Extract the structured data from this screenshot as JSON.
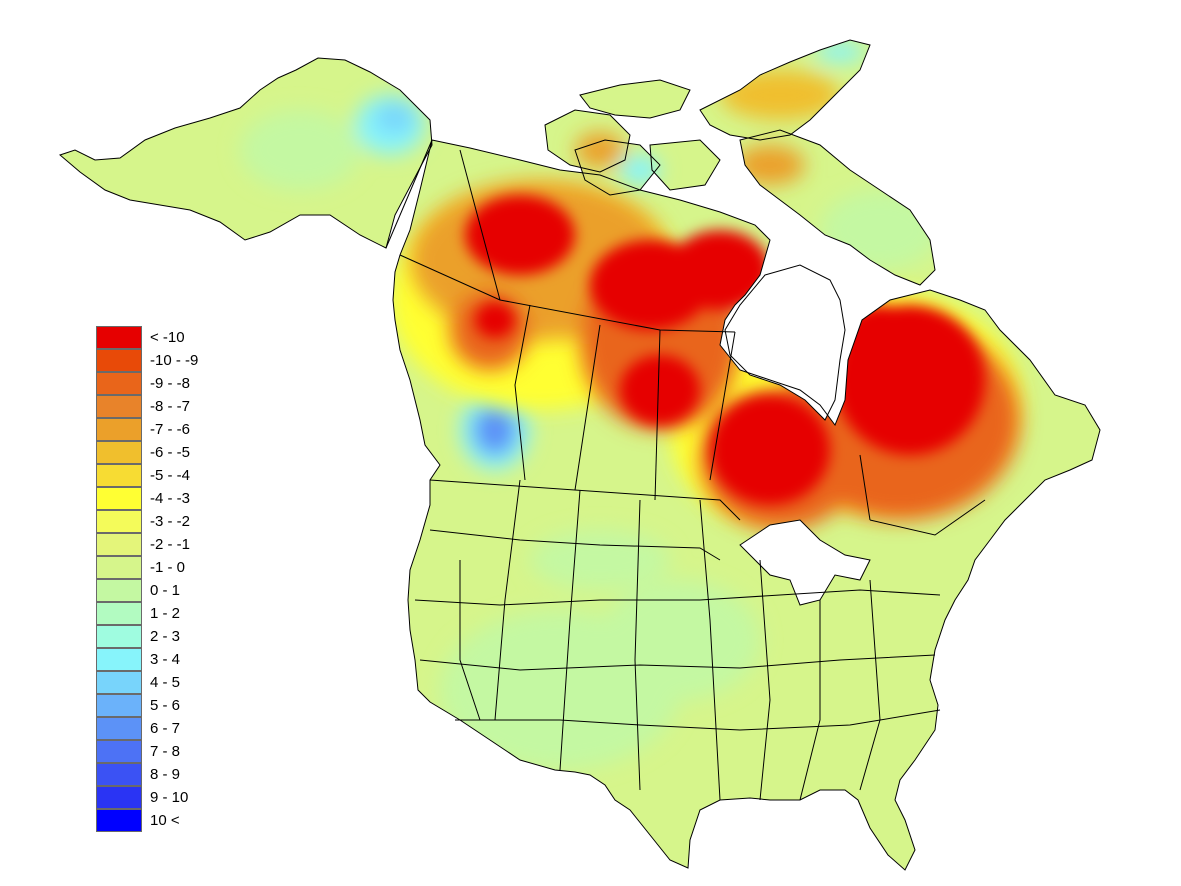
{
  "map": {
    "region": "North America",
    "background_color": "#ffffff",
    "boundary_color": "#000000"
  },
  "legend": {
    "items": [
      {
        "label": "< -10",
        "color": "#e60000"
      },
      {
        "label": "-10 - -9",
        "color": "#e84a08"
      },
      {
        "label": "-9 - -8",
        "color": "#e9651a"
      },
      {
        "label": "-8 - -7",
        "color": "#e8832a"
      },
      {
        "label": "-7 - -6",
        "color": "#eba02a"
      },
      {
        "label": "-6 - -5",
        "color": "#f0bf2d"
      },
      {
        "label": "-5 - -4",
        "color": "#f7dc33"
      },
      {
        "label": "-4 - -3",
        "color": "#ffff33"
      },
      {
        "label": "-3 - -2",
        "color": "#f4fb5a"
      },
      {
        "label": "-2 - -1",
        "color": "#e4f57a"
      },
      {
        "label": "-1 - 0",
        "color": "#d6f58b"
      },
      {
        "label": "0 - 1",
        "color": "#c4f8a2"
      },
      {
        "label": "1 - 2",
        "color": "#b2fbc1"
      },
      {
        "label": "2 - 3",
        "color": "#9ffce0"
      },
      {
        "label": "3 - 4",
        "color": "#87f4fb"
      },
      {
        "label": "4 - 5",
        "color": "#78d4fb"
      },
      {
        "label": "5 - 6",
        "color": "#6bb2fa"
      },
      {
        "label": "6 - 7",
        "color": "#5c92f7"
      },
      {
        "label": "7 - 8",
        "color": "#4d72f5"
      },
      {
        "label": "8 - 9",
        "color": "#3b52f4"
      },
      {
        "label": "9 - 10",
        "color": "#2a34f4"
      },
      {
        "label": "10 <",
        "color": "#0000ff"
      }
    ]
  }
}
